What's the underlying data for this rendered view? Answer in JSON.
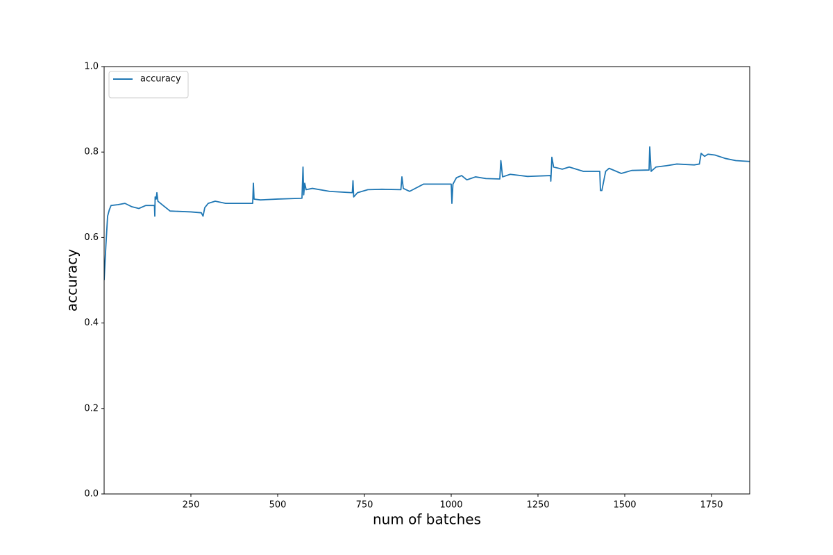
{
  "chart_data": {
    "type": "line",
    "xlabel": "num of batches",
    "ylabel": "accuracy",
    "x": [
      0,
      5,
      10,
      15,
      20,
      40,
      60,
      80,
      100,
      120,
      145,
      146,
      147,
      150,
      152,
      155,
      170,
      190,
      250,
      280,
      285,
      290,
      300,
      320,
      350,
      428,
      430,
      432,
      450,
      500,
      570,
      573,
      575,
      578,
      582,
      600,
      650,
      715,
      717,
      719,
      730,
      760,
      800,
      855,
      858,
      862,
      880,
      920,
      1000,
      1002,
      1005,
      1015,
      1030,
      1045,
      1070,
      1100,
      1140,
      1143,
      1148,
      1170,
      1220,
      1286,
      1287,
      1290,
      1295,
      1320,
      1340,
      1380,
      1428,
      1430,
      1434,
      1445,
      1455,
      1490,
      1520,
      1570,
      1572,
      1576,
      1590,
      1620,
      1650,
      1700,
      1715,
      1720,
      1730,
      1740,
      1760,
      1790,
      1820,
      1860
    ],
    "series": [
      {
        "name": "accuracy",
        "color": "#1f77b4",
        "values": [
          0.5,
          0.58,
          0.65,
          0.665,
          0.675,
          0.677,
          0.68,
          0.672,
          0.668,
          0.675,
          0.675,
          0.65,
          0.695,
          0.69,
          0.705,
          0.685,
          0.675,
          0.662,
          0.66,
          0.658,
          0.65,
          0.67,
          0.68,
          0.685,
          0.68,
          0.68,
          0.727,
          0.69,
          0.688,
          0.69,
          0.692,
          0.765,
          0.7,
          0.727,
          0.712,
          0.715,
          0.708,
          0.705,
          0.733,
          0.695,
          0.705,
          0.712,
          0.713,
          0.712,
          0.742,
          0.715,
          0.708,
          0.725,
          0.725,
          0.68,
          0.725,
          0.74,
          0.745,
          0.735,
          0.742,
          0.738,
          0.737,
          0.78,
          0.742,
          0.748,
          0.743,
          0.745,
          0.732,
          0.788,
          0.765,
          0.76,
          0.765,
          0.755,
          0.755,
          0.71,
          0.71,
          0.755,
          0.762,
          0.75,
          0.757,
          0.758,
          0.812,
          0.755,
          0.765,
          0.768,
          0.772,
          0.77,
          0.772,
          0.797,
          0.79,
          0.795,
          0.793,
          0.785,
          0.78,
          0.778
        ]
      }
    ],
    "xlim": [
      0,
      1860
    ],
    "ylim": [
      0,
      1
    ],
    "xticks": [
      250,
      500,
      750,
      1000,
      1250,
      1500,
      1750
    ],
    "yticks": [
      {
        "value": 0,
        "label": "0.0"
      },
      0.2,
      0.4,
      0.6,
      0.8,
      {
        "value": 1,
        "label": "1.0"
      }
    ],
    "legend": "upper left",
    "grid": false
  }
}
